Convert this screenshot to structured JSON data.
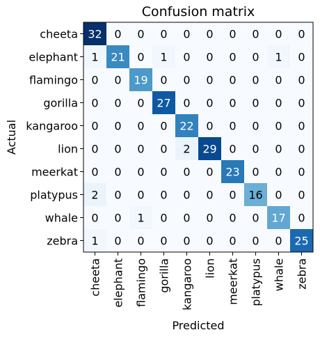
{
  "chart_data": {
    "type": "heatmap",
    "title": "Confusion matrix",
    "xlabel": "Predicted",
    "ylabel": "Actual",
    "labels": [
      "cheeta",
      "elephant",
      "flamingo",
      "gorilla",
      "kangaroo",
      "lion",
      "meerkat",
      "platypus",
      "whale",
      "zebra"
    ],
    "matrix": [
      [
        32,
        0,
        0,
        0,
        0,
        0,
        0,
        0,
        0,
        0
      ],
      [
        1,
        21,
        0,
        1,
        0,
        0,
        0,
        0,
        1,
        0
      ],
      [
        0,
        0,
        19,
        0,
        0,
        0,
        0,
        0,
        0,
        0
      ],
      [
        0,
        0,
        0,
        27,
        0,
        0,
        0,
        0,
        0,
        0
      ],
      [
        0,
        0,
        0,
        0,
        22,
        0,
        0,
        0,
        0,
        0
      ],
      [
        0,
        0,
        0,
        0,
        2,
        29,
        0,
        0,
        0,
        0
      ],
      [
        0,
        0,
        0,
        0,
        0,
        0,
        23,
        0,
        0,
        0
      ],
      [
        2,
        0,
        0,
        0,
        0,
        0,
        0,
        16,
        0,
        0
      ],
      [
        0,
        0,
        1,
        0,
        0,
        0,
        0,
        0,
        17,
        0
      ],
      [
        1,
        0,
        0,
        0,
        0,
        0,
        0,
        0,
        0,
        25
      ]
    ],
    "colormap": "Blues",
    "color_low": "#f7fbff",
    "color_high": "#08306b",
    "grid": false,
    "colorbar": false
  }
}
